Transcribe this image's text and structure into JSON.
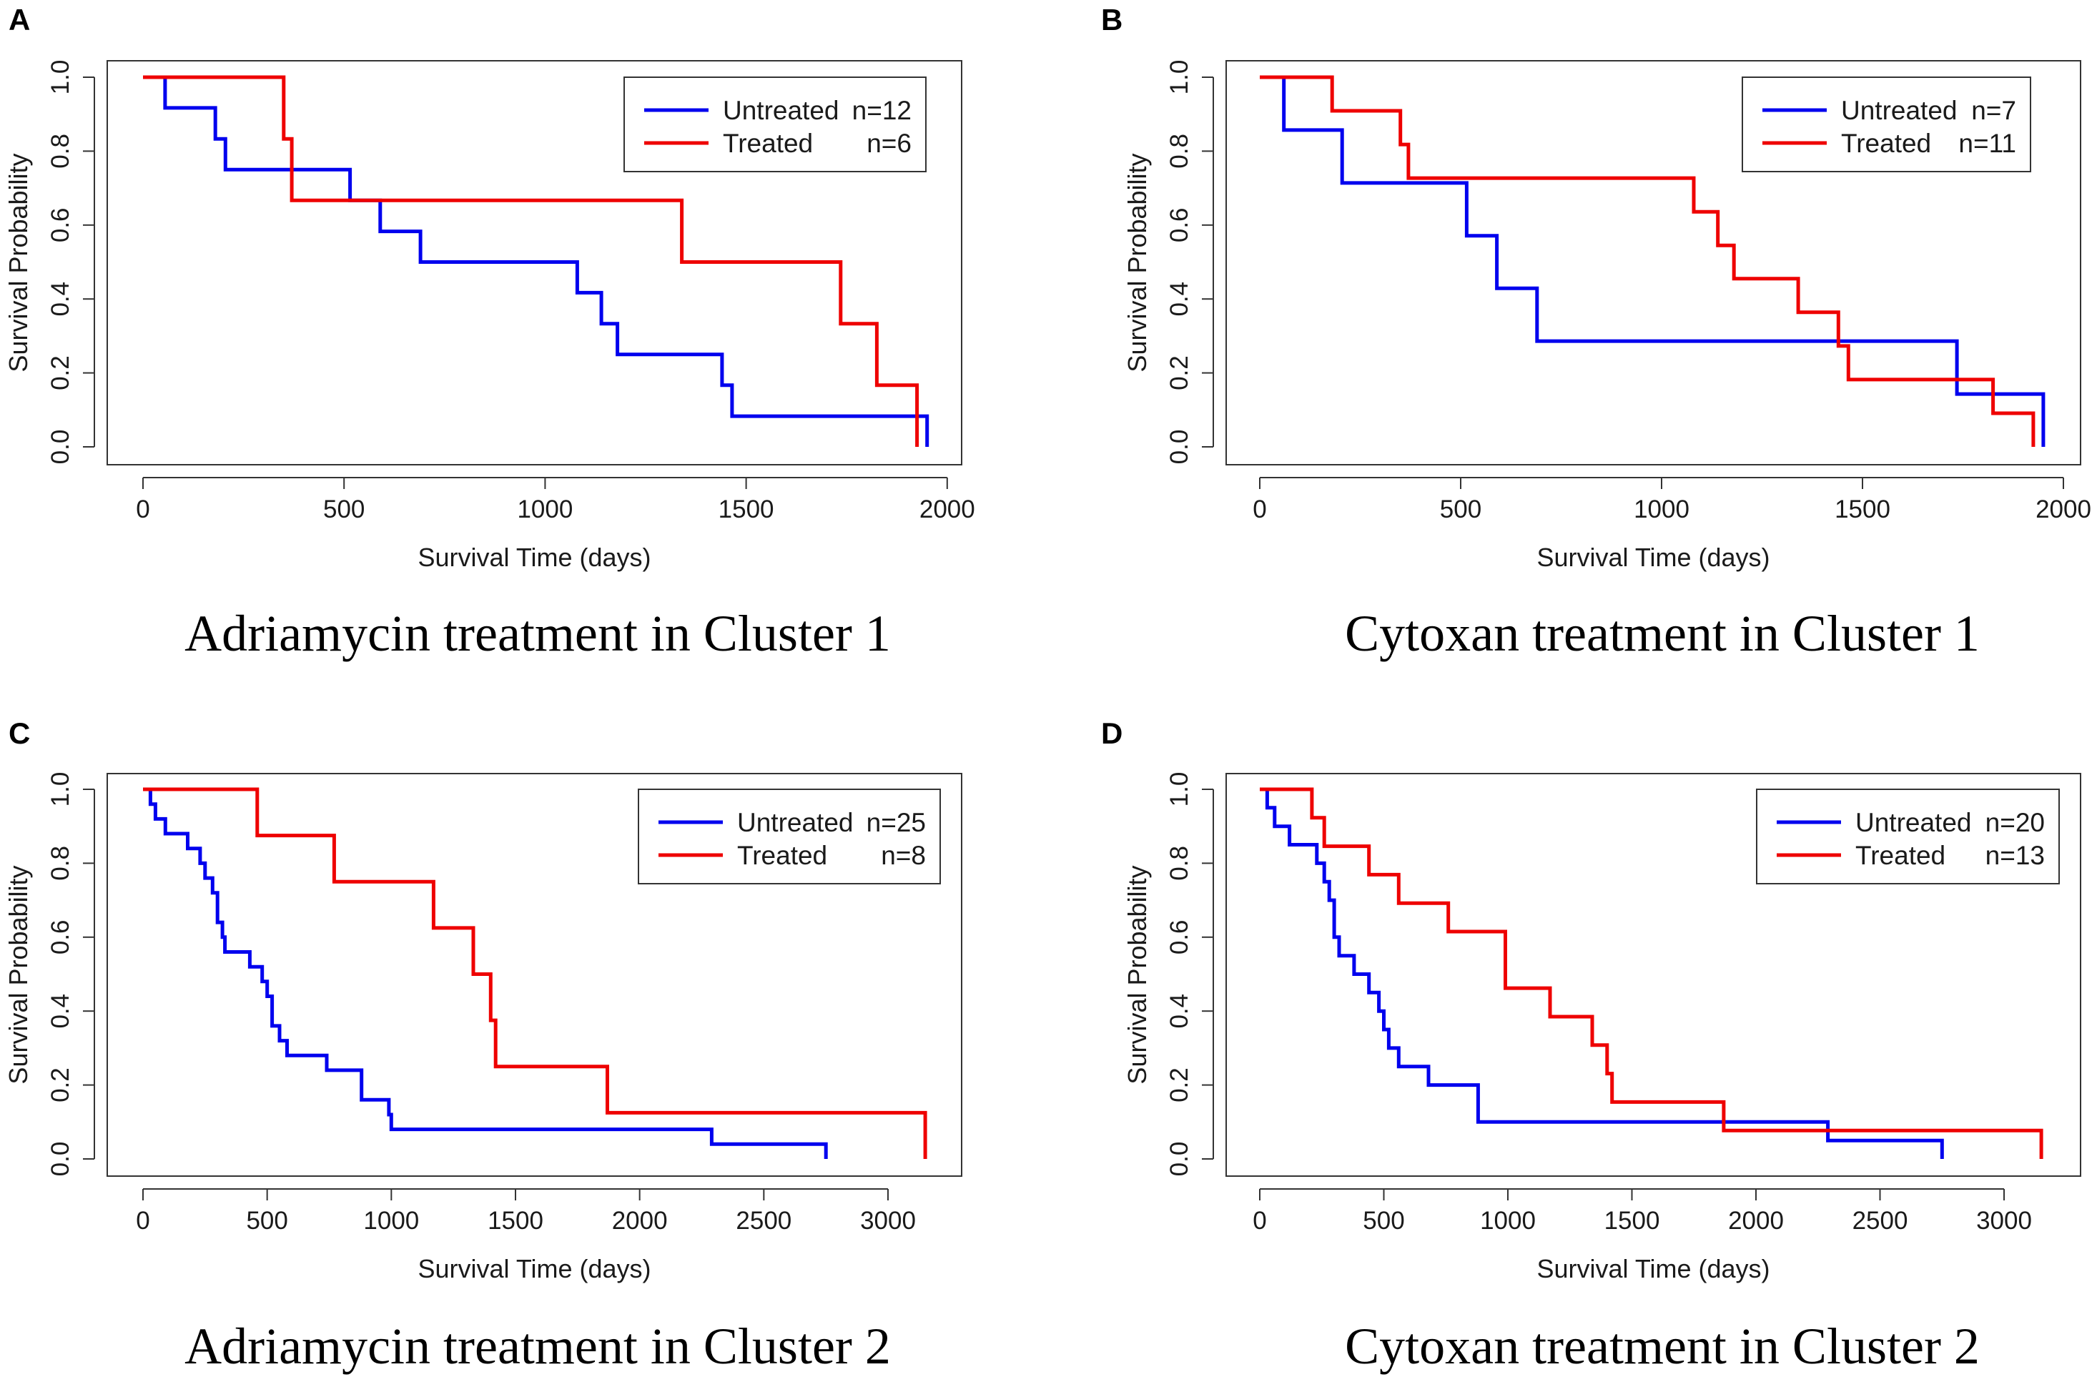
{
  "chart_data": [
    {
      "type": "line",
      "panel": "A",
      "caption": "Adriamycin treatment in Cluster 1",
      "xlabel": "Survival Time (days)",
      "ylabel": "Survival Probability",
      "xlim": [
        0,
        2000
      ],
      "ylim": [
        0,
        1
      ],
      "xticks": [
        0,
        500,
        1000,
        1500,
        2000
      ],
      "xtick_labels": [
        "0",
        "500",
        "1000",
        "1500",
        "2000"
      ],
      "yticks": [
        0,
        0.2,
        0.4,
        0.6,
        0.8,
        1.0
      ],
      "ytick_labels": [
        "0.0",
        "0.2",
        "0.4",
        "0.6",
        "0.8",
        "1.0"
      ],
      "legend_position": "top-right",
      "series": [
        {
          "name": "Untreated",
          "n_label": "n=12",
          "color": "#0000ee",
          "x": [
            0,
            55,
            180,
            205,
            515,
            590,
            690,
            1080,
            1140,
            1180,
            1440,
            1465,
            1950,
            1950
          ],
          "y": [
            1.0,
            0.917,
            0.833,
            0.75,
            0.667,
            0.583,
            0.5,
            0.417,
            0.333,
            0.25,
            0.167,
            0.083,
            0.083,
            0.0
          ]
        },
        {
          "name": "Treated",
          "n_label": "n=6",
          "color": "#ee0000",
          "x": [
            0,
            350,
            370,
            1340,
            1735,
            1825,
            1925,
            1925
          ],
          "y": [
            1.0,
            0.833,
            0.667,
            0.5,
            0.333,
            0.167,
            0.167,
            0.0
          ]
        }
      ]
    },
    {
      "type": "line",
      "panel": "B",
      "caption": "Cytoxan treatment in Cluster 1",
      "xlabel": "Survival Time (days)",
      "ylabel": "Survival Probability",
      "xlim": [
        0,
        2000
      ],
      "ylim": [
        0,
        1
      ],
      "xticks": [
        0,
        500,
        1000,
        1500,
        2000
      ],
      "xtick_labels": [
        "0",
        "500",
        "1000",
        "1500",
        "2000"
      ],
      "yticks": [
        0,
        0.2,
        0.4,
        0.6,
        0.8,
        1.0
      ],
      "ytick_labels": [
        "0.0",
        "0.2",
        "0.4",
        "0.6",
        "0.8",
        "1.0"
      ],
      "legend_position": "top-right",
      "series": [
        {
          "name": "Untreated",
          "n_label": "n=7",
          "color": "#0000ee",
          "x": [
            0,
            60,
            205,
            515,
            590,
            690,
            1735,
            1950,
            1950
          ],
          "y": [
            1.0,
            0.857,
            0.714,
            0.571,
            0.429,
            0.286,
            0.143,
            0.143,
            0.0
          ]
        },
        {
          "name": "Treated",
          "n_label": "n=11",
          "color": "#ee0000",
          "x": [
            0,
            180,
            350,
            370,
            1080,
            1140,
            1180,
            1340,
            1440,
            1465,
            1825,
            1925,
            1925
          ],
          "y": [
            1.0,
            0.909,
            0.818,
            0.727,
            0.636,
            0.545,
            0.455,
            0.364,
            0.273,
            0.182,
            0.091,
            0.091,
            0.0
          ]
        }
      ]
    },
    {
      "type": "line",
      "panel": "C",
      "caption": "Adriamycin treatment in Cluster 2",
      "xlabel": "Survival Time (days)",
      "ylabel": "Survival Probability",
      "xlim": [
        0,
        3200
      ],
      "ylim": [
        0,
        1
      ],
      "xticks": [
        0,
        500,
        1000,
        1500,
        2000,
        2500,
        3000
      ],
      "xtick_labels": [
        "0",
        "500",
        "1000",
        "1500",
        "2000",
        "2500",
        "3000"
      ],
      "yticks": [
        0,
        0.2,
        0.4,
        0.6,
        0.8,
        1.0
      ],
      "ytick_labels": [
        "0.0",
        "0.2",
        "0.4",
        "0.6",
        "0.8",
        "1.0"
      ],
      "legend_position": "top-right",
      "series": [
        {
          "name": "Untreated",
          "n_label": "n=25",
          "color": "#0000ee",
          "x": [
            0,
            30,
            50,
            90,
            180,
            230,
            250,
            280,
            300,
            320,
            330,
            430,
            480,
            500,
            520,
            550,
            580,
            740,
            880,
            990,
            1000,
            2290,
            2750,
            2750
          ],
          "y": [
            1.0,
            0.96,
            0.92,
            0.88,
            0.84,
            0.8,
            0.76,
            0.72,
            0.64,
            0.6,
            0.56,
            0.52,
            0.48,
            0.44,
            0.36,
            0.32,
            0.28,
            0.24,
            0.16,
            0.12,
            0.08,
            0.04,
            0.04,
            0.0
          ]
        },
        {
          "name": "Treated",
          "n_label": "n=8",
          "color": "#ee0000",
          "x": [
            0,
            460,
            770,
            1170,
            1330,
            1400,
            1420,
            1870,
            3150,
            3150
          ],
          "y": [
            1.0,
            0.875,
            0.75,
            0.625,
            0.5,
            0.375,
            0.25,
            0.125,
            0.125,
            0.0
          ]
        }
      ]
    },
    {
      "type": "line",
      "panel": "D",
      "caption": "Cytoxan treatment in Cluster 2",
      "xlabel": "Survival Time (days)",
      "ylabel": "Survival Probability",
      "xlim": [
        0,
        3200
      ],
      "ylim": [
        0,
        1
      ],
      "xticks": [
        0,
        500,
        1000,
        1500,
        2000,
        2500,
        3000
      ],
      "xtick_labels": [
        "0",
        "500",
        "1000",
        "1500",
        "2000",
        "2500",
        "3000"
      ],
      "yticks": [
        0,
        0.2,
        0.4,
        0.6,
        0.8,
        1.0
      ],
      "ytick_labels": [
        "0.0",
        "0.2",
        "0.4",
        "0.6",
        "0.8",
        "1.0"
      ],
      "legend_position": "top-right",
      "series": [
        {
          "name": "Untreated",
          "n_label": "n=20",
          "color": "#0000ee",
          "x": [
            0,
            30,
            60,
            120,
            230,
            260,
            280,
            300,
            320,
            380,
            440,
            480,
            500,
            520,
            560,
            680,
            880,
            2290,
            2750,
            2750
          ],
          "y": [
            1.0,
            0.95,
            0.9,
            0.85,
            0.8,
            0.75,
            0.7,
            0.6,
            0.55,
            0.5,
            0.45,
            0.4,
            0.35,
            0.3,
            0.25,
            0.2,
            0.1,
            0.05,
            0.05,
            0.0
          ]
        },
        {
          "name": "Treated",
          "n_label": "n=13",
          "color": "#ee0000",
          "x": [
            0,
            210,
            260,
            440,
            560,
            760,
            990,
            1170,
            1340,
            1400,
            1420,
            1870,
            3150,
            3150
          ],
          "y": [
            1.0,
            0.923,
            0.846,
            0.769,
            0.692,
            0.615,
            0.462,
            0.385,
            0.308,
            0.231,
            0.154,
            0.077,
            0.077,
            0.0
          ]
        }
      ]
    }
  ]
}
